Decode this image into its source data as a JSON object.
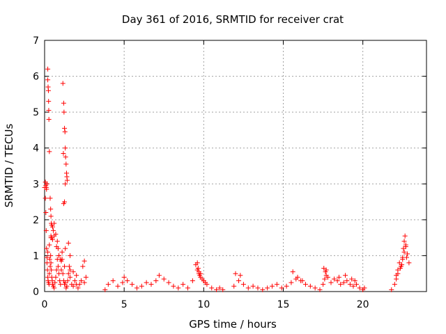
{
  "chart_data": {
    "type": "scatter",
    "title": "Day 361 of 2016, SRMTID for receiver crat",
    "xlabel": "GPS time / hours",
    "ylabel": "SRMTID / TECUs",
    "xlim": [
      0,
      24
    ],
    "ylim": [
      0,
      7
    ],
    "xticks": [
      0,
      5,
      10,
      15,
      20
    ],
    "yticks": [
      0,
      1,
      2,
      3,
      4,
      5,
      6,
      7
    ],
    "grid": true,
    "marker": "+",
    "color": "#ff0000",
    "series": [
      {
        "name": "SRMTID",
        "x": [
          0.0,
          0.05,
          0.08,
          0.1,
          0.12,
          0.15,
          0.18,
          0.2,
          0.22,
          0.25,
          0.28,
          0.3,
          0.32,
          0.35,
          0.38,
          0.4,
          0.42,
          0.45,
          0.48,
          0.5,
          0.55,
          0.6,
          0.65,
          0.7,
          0.75,
          0.8,
          0.85,
          0.9,
          0.95,
          1.0,
          1.05,
          1.1,
          1.15,
          1.2,
          1.25,
          1.3,
          1.35,
          1.4,
          1.45,
          1.5,
          1.55,
          1.6,
          1.7,
          1.8,
          1.9,
          2.0,
          2.1,
          2.2,
          2.3,
          2.4,
          2.5,
          2.6,
          0.2,
          0.2,
          0.22,
          0.24,
          0.25,
          0.26,
          0.27,
          0.3,
          0.15,
          0.1,
          0.12,
          0.05,
          0.08,
          0.35,
          0.38,
          0.4,
          0.42,
          0.45,
          0.5,
          1.15,
          1.2,
          1.22,
          1.25,
          1.28,
          1.3,
          1.32,
          1.35,
          1.38,
          1.4,
          1.42,
          1.3,
          1.25,
          1.2,
          1.18,
          0.4,
          0.45,
          0.5,
          0.55,
          0.6,
          0.7,
          0.8,
          0.85,
          0.9,
          1.0,
          1.1,
          1.3,
          1.5,
          1.6,
          0.15,
          0.2,
          0.3,
          0.4,
          0.6,
          0.75,
          0.9,
          1.05,
          1.25,
          1.6,
          1.8,
          2.0,
          2.3,
          2.5,
          3.8,
          4.0,
          4.3,
          4.6,
          4.9,
          5.0,
          5.2,
          5.5,
          5.8,
          6.1,
          6.4,
          6.7,
          7.0,
          7.2,
          7.5,
          7.8,
          8.1,
          8.4,
          8.7,
          9.0,
          9.3,
          9.5,
          9.6,
          9.7,
          9.8,
          10.0,
          10.2,
          10.5,
          10.8,
          11.0,
          11.2,
          9.6,
          9.65,
          9.7,
          9.75,
          9.8,
          9.9,
          10.0,
          10.1,
          11.9,
          12.2,
          12.5,
          12.8,
          13.1,
          13.4,
          13.7,
          14.0,
          14.3,
          14.6,
          14.9,
          15.2,
          15.5,
          15.8,
          16.1,
          16.4,
          16.7,
          17.0,
          17.3,
          17.5,
          17.6,
          17.7,
          17.8,
          12.0,
          12.3,
          15.6,
          15.9,
          16.2,
          17.55,
          17.65,
          17.7,
          18.0,
          18.2,
          18.4,
          18.6,
          18.8,
          19.0,
          19.2,
          19.4,
          19.6,
          19.8,
          20.0,
          20.1,
          18.5,
          18.9,
          19.3,
          19.5,
          21.8,
          22.0,
          22.1,
          22.2,
          22.3,
          22.4,
          22.5,
          22.6,
          22.7,
          22.8,
          22.9,
          22.1,
          22.2,
          22.35,
          22.45,
          22.5,
          22.55,
          22.6,
          22.65,
          22.7,
          22.75
        ],
        "y": [
          2.9,
          2.6,
          2.2,
          1.7,
          1.2,
          0.8,
          0.6,
          0.4,
          0.3,
          0.25,
          0.2,
          0.5,
          0.9,
          0.7,
          1.0,
          0.8,
          0.6,
          0.4,
          0.3,
          0.2,
          0.15,
          0.1,
          0.25,
          0.4,
          0.6,
          0.9,
          0.7,
          0.5,
          0.3,
          0.2,
          0.6,
          0.9,
          0.5,
          0.3,
          0.2,
          0.25,
          0.1,
          0.15,
          0.3,
          0.5,
          0.7,
          0.4,
          0.2,
          0.15,
          0.3,
          0.2,
          0.1,
          0.2,
          0.3,
          0.7,
          0.85,
          0.4,
          6.2,
          5.9,
          5.7,
          5.6,
          5.3,
          5.05,
          4.8,
          3.9,
          3.0,
          2.9,
          2.85,
          3.05,
          2.95,
          2.6,
          2.3,
          2.1,
          1.9,
          1.85,
          1.8,
          5.8,
          5.25,
          5.0,
          4.55,
          4.45,
          4.0,
          3.75,
          3.55,
          3.3,
          3.2,
          3.1,
          3.0,
          2.5,
          2.45,
          3.85,
          1.55,
          1.5,
          1.45,
          1.7,
          1.9,
          1.6,
          1.4,
          1.2,
          1.0,
          0.9,
          1.1,
          1.2,
          1.35,
          1.0,
          0.95,
          1.1,
          1.3,
          1.5,
          1.55,
          1.25,
          1.0,
          0.85,
          0.7,
          0.6,
          0.55,
          0.45,
          0.3,
          0.25,
          0.05,
          0.2,
          0.3,
          0.15,
          0.25,
          0.4,
          0.3,
          0.2,
          0.1,
          0.15,
          0.25,
          0.2,
          0.3,
          0.45,
          0.35,
          0.25,
          0.15,
          0.1,
          0.2,
          0.1,
          0.3,
          0.75,
          0.6,
          0.5,
          0.4,
          0.3,
          0.2,
          0.1,
          0.05,
          0.1,
          0.05,
          0.8,
          0.65,
          0.55,
          0.45,
          0.5,
          0.35,
          0.3,
          0.25,
          0.15,
          0.3,
          0.2,
          0.1,
          0.15,
          0.1,
          0.05,
          0.1,
          0.15,
          0.2,
          0.1,
          0.15,
          0.25,
          0.35,
          0.3,
          0.2,
          0.15,
          0.1,
          0.05,
          0.2,
          0.35,
          0.6,
          0.4,
          0.5,
          0.45,
          0.55,
          0.4,
          0.3,
          0.65,
          0.55,
          0.45,
          0.25,
          0.35,
          0.3,
          0.2,
          0.25,
          0.3,
          0.2,
          0.15,
          0.2,
          0.1,
          0.05,
          0.1,
          0.4,
          0.45,
          0.35,
          0.3,
          0.05,
          0.2,
          0.45,
          0.6,
          0.8,
          0.7,
          0.9,
          1.1,
          1.25,
          1.05,
          0.8,
          0.35,
          0.5,
          0.65,
          0.75,
          0.95,
          1.2,
          1.4,
          1.55,
          1.3,
          0.95
        ]
      }
    ]
  }
}
